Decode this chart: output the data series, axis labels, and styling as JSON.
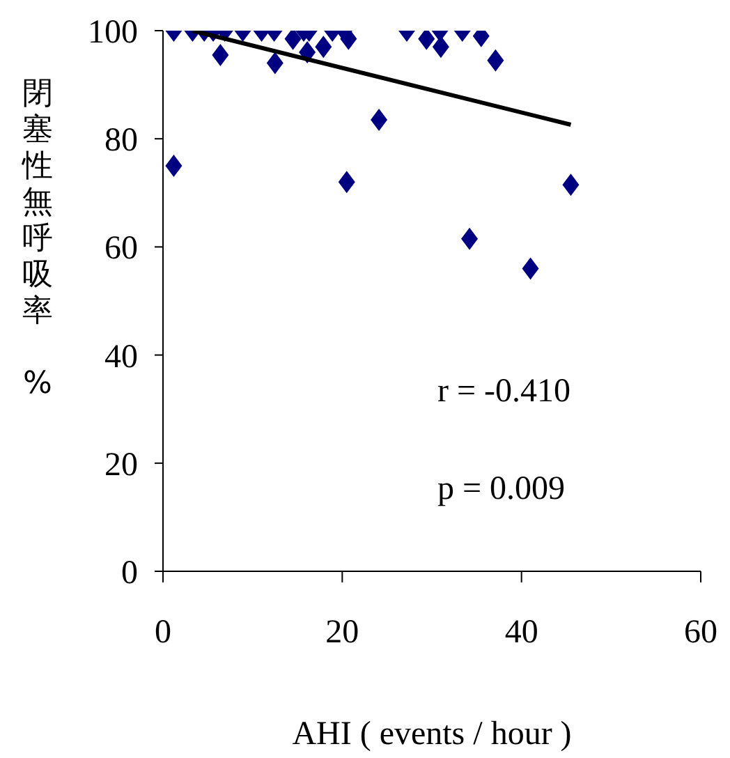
{
  "chart_data": {
    "type": "scatter",
    "xlabel": "AHI ( events / hour )",
    "ylabel": "閉塞性無呼吸率　%",
    "xlim": [
      0,
      60
    ],
    "xticks": [
      0,
      20,
      40,
      60
    ],
    "ylim": [
      0,
      100
    ],
    "yticks": [
      0,
      20,
      40,
      60,
      80,
      100
    ],
    "annotations": [
      "r = -0.410",
      "p = 0.009"
    ],
    "series": [
      {
        "marker": "diamond",
        "color": "#000080",
        "x": [
          1.2,
          1.2,
          3.3,
          4.6,
          5.6,
          6.9,
          6.4,
          8.9,
          11.0,
          12.4,
          12.5,
          14.5,
          15.7,
          16.3,
          16.1,
          17.9,
          18.9,
          20.2,
          20.7,
          20.5,
          24.1,
          27.2,
          29.4,
          30.9,
          31.0,
          33.4,
          35.5,
          37.1,
          34.2,
          41.0,
          45.5
        ],
        "values": [
          100,
          75,
          100,
          100,
          100,
          100,
          95.5,
          100,
          100,
          100,
          94,
          98.5,
          100,
          100,
          96,
          97,
          100,
          100,
          98.5,
          72,
          83.5,
          100,
          98.5,
          100,
          97,
          100,
          99,
          94.5,
          61.5,
          56,
          71.5
        ]
      },
      {
        "type": "line",
        "color": "#000000",
        "x": [
          3.3,
          45.5
        ],
        "values": [
          100,
          82.6
        ]
      }
    ]
  }
}
